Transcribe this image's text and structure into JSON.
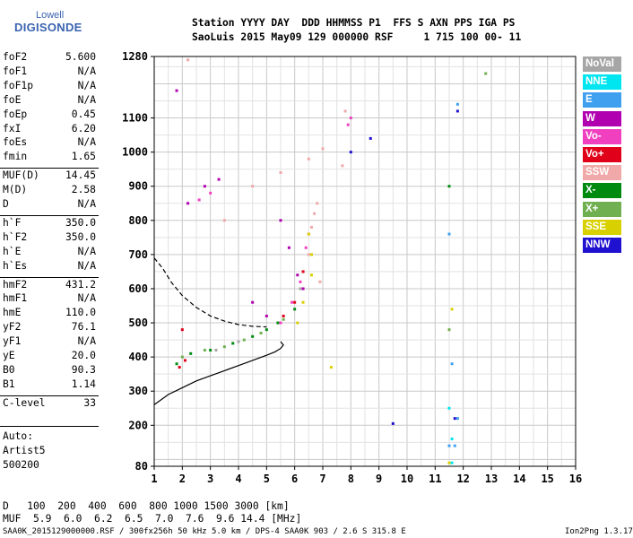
{
  "logo": {
    "line1": "Lowell",
    "line2": "DIGISONDE"
  },
  "header": {
    "row1": "Station YYYY DAY  DDD HHMMSS P1  FFS S AXN PPS IGA PS",
    "row2": "SaoLuis 2015 May09 129 000000 RSF     1 715 100 00- 11"
  },
  "params": [
    {
      "group": 1,
      "name": "foF2",
      "value": "5.600"
    },
    {
      "group": 1,
      "name": "foF1",
      "value": "N/A"
    },
    {
      "group": 1,
      "name": "foF1p",
      "value": "N/A"
    },
    {
      "group": 1,
      "name": "foE",
      "value": "N/A"
    },
    {
      "group": 1,
      "name": "foEp",
      "value": "0.45"
    },
    {
      "group": 1,
      "name": "fxI",
      "value": "6.20"
    },
    {
      "group": 1,
      "name": "foEs",
      "value": "N/A"
    },
    {
      "group": 1,
      "name": "fmin",
      "value": "1.65"
    },
    {
      "group": 2,
      "name": "MUF(D)",
      "value": "14.45"
    },
    {
      "group": 2,
      "name": "M(D)",
      "value": "2.58"
    },
    {
      "group": 2,
      "name": "D",
      "value": "N/A"
    },
    {
      "group": 3,
      "name": "h`F",
      "value": "350.0"
    },
    {
      "group": 3,
      "name": "h`F2",
      "value": "350.0"
    },
    {
      "group": 3,
      "name": "h`E",
      "value": "N/A"
    },
    {
      "group": 3,
      "name": "h`Es",
      "value": "N/A"
    },
    {
      "group": 4,
      "name": "hmF2",
      "value": "431.2"
    },
    {
      "group": 4,
      "name": "hmF1",
      "value": "N/A"
    },
    {
      "group": 4,
      "name": "hmE",
      "value": "110.0"
    },
    {
      "group": 4,
      "name": "yF2",
      "value": "76.1"
    },
    {
      "group": 4,
      "name": "yF1",
      "value": "N/A"
    },
    {
      "group": 4,
      "name": "yE",
      "value": "20.0"
    },
    {
      "group": 4,
      "name": "B0",
      "value": "90.3"
    },
    {
      "group": 4,
      "name": "B1",
      "value": "1.14"
    },
    {
      "group": 5,
      "name": "C-level",
      "value": "33"
    }
  ],
  "auto": {
    "l1": "Auto:",
    "l2": "Artist5",
    "l3": "500200"
  },
  "legend": [
    {
      "label": "NoVal",
      "color": "#a6a6a6"
    },
    {
      "label": "NNE",
      "color": "#00e6f0"
    },
    {
      "label": "E",
      "color": "#3fa0f0"
    },
    {
      "label": "W",
      "color": "#b000b0"
    },
    {
      "label": "Vo-",
      "color": "#f040c0"
    },
    {
      "label": "Vo+",
      "color": "#e0001a"
    },
    {
      "label": "SSW",
      "color": "#f0a8a8"
    },
    {
      "label": "X-",
      "color": "#008a10"
    },
    {
      "label": "X+",
      "color": "#70b050"
    },
    {
      "label": "SSE",
      "color": "#d8d000"
    },
    {
      "label": "NNW",
      "color": "#2010d0"
    }
  ],
  "bottom": {
    "drow": "D   100  200  400  600  800 1000 1500 3000 [km]",
    "mufrow": "MUF  5.9  6.0  6.2  6.5  7.0  7.6  9.6 14.4 [MHz]"
  },
  "footer": {
    "left": "SAA0K_2015129000000.RSF / 300fx256h 50 kHz 5.0 km / DPS-4 SAA0K 903 / 2.6 S 315.8 E",
    "right": "Ion2Png 1.3.17"
  },
  "chart_data": {
    "type": "scatter",
    "xlim": [
      1,
      16
    ],
    "ylim": [
      80,
      1280
    ],
    "x_ticks": [
      1,
      2,
      3,
      4,
      5,
      6,
      7,
      8,
      9,
      10,
      11,
      12,
      13,
      14,
      15,
      16
    ],
    "y_ticks": [
      80,
      200,
      300,
      400,
      500,
      600,
      700,
      800,
      900,
      1000,
      1100,
      1280
    ],
    "grid": true,
    "legend_position": "right",
    "series": [
      {
        "color": "#b000b0",
        "points": [
          [
            1.8,
            1180
          ],
          [
            5.5,
            800
          ],
          [
            5.8,
            720
          ],
          [
            6.1,
            640
          ],
          [
            6.3,
            600
          ],
          [
            4.5,
            560
          ],
          [
            5.0,
            520
          ],
          [
            2.2,
            850
          ],
          [
            2.8,
            900
          ],
          [
            3.3,
            920
          ]
        ]
      },
      {
        "color": "#f040c0",
        "points": [
          [
            6.4,
            720
          ],
          [
            6.5,
            760
          ],
          [
            6.2,
            620
          ],
          [
            5.9,
            560
          ],
          [
            5.5,
            500
          ],
          [
            3.0,
            880
          ],
          [
            2.6,
            860
          ],
          [
            7.9,
            1080
          ],
          [
            8.0,
            1100
          ]
        ]
      },
      {
        "color": "#e0001a",
        "points": [
          [
            1.9,
            370
          ],
          [
            2.1,
            390
          ],
          [
            6.0,
            560
          ],
          [
            6.3,
            650
          ],
          [
            5.6,
            520
          ],
          [
            2.0,
            480
          ]
        ]
      },
      {
        "color": "#f0a8a8",
        "points": [
          [
            6.6,
            780
          ],
          [
            6.7,
            820
          ],
          [
            6.8,
            850
          ],
          [
            6.5,
            700
          ],
          [
            6.9,
            620
          ],
          [
            4.5,
            900
          ],
          [
            5.5,
            940
          ],
          [
            6.5,
            980
          ],
          [
            7.0,
            1010
          ],
          [
            2.2,
            1270
          ],
          [
            3.5,
            800
          ],
          [
            7.7,
            960
          ],
          [
            7.8,
            1120
          ]
        ]
      },
      {
        "color": "#008a10",
        "points": [
          [
            1.8,
            380
          ],
          [
            2.3,
            410
          ],
          [
            3.0,
            420
          ],
          [
            3.8,
            440
          ],
          [
            4.5,
            460
          ],
          [
            5.0,
            480
          ],
          [
            5.4,
            500
          ],
          [
            11.5,
            900
          ],
          [
            6.0,
            540
          ]
        ]
      },
      {
        "color": "#70b050",
        "points": [
          [
            2.0,
            400
          ],
          [
            2.8,
            420
          ],
          [
            3.5,
            430
          ],
          [
            4.2,
            450
          ],
          [
            4.8,
            470
          ],
          [
            5.6,
            510
          ],
          [
            12.8,
            1230
          ],
          [
            11.5,
            480
          ]
        ]
      },
      {
        "color": "#d8d000",
        "points": [
          [
            6.3,
            560
          ],
          [
            6.6,
            640
          ],
          [
            6.6,
            700
          ],
          [
            6.1,
            500
          ],
          [
            7.3,
            370
          ],
          [
            11.6,
            540
          ],
          [
            11.5,
            90
          ],
          [
            6.5,
            760
          ]
        ]
      },
      {
        "color": "#3fa0f0",
        "points": [
          [
            11.5,
            760
          ],
          [
            11.6,
            380
          ],
          [
            11.5,
            140
          ],
          [
            11.7,
            140
          ],
          [
            11.8,
            220
          ],
          [
            11.8,
            1140
          ]
        ]
      },
      {
        "color": "#00e6f0",
        "points": [
          [
            11.5,
            250
          ],
          [
            11.6,
            90
          ],
          [
            11.6,
            160
          ]
        ]
      },
      {
        "color": "#2010d0",
        "points": [
          [
            9.5,
            205
          ],
          [
            11.8,
            1120
          ],
          [
            11.7,
            220
          ],
          [
            8.7,
            1040
          ],
          [
            8.0,
            1000
          ]
        ]
      },
      {
        "color": "#a6a6a6",
        "points": [
          [
            3.2,
            420
          ],
          [
            4.0,
            445
          ],
          [
            6.2,
            600
          ]
        ]
      }
    ],
    "curves": [
      {
        "style": "solid",
        "points": [
          [
            1.0,
            260
          ],
          [
            1.5,
            290
          ],
          [
            2.0,
            310
          ],
          [
            2.5,
            330
          ],
          [
            3.0,
            345
          ],
          [
            3.5,
            360
          ],
          [
            4.0,
            375
          ],
          [
            4.5,
            390
          ],
          [
            5.0,
            405
          ],
          [
            5.3,
            415
          ],
          [
            5.5,
            425
          ],
          [
            5.6,
            435
          ],
          [
            5.5,
            445
          ]
        ]
      },
      {
        "style": "dashed",
        "points": [
          [
            1.0,
            690
          ],
          [
            1.3,
            660
          ],
          [
            1.6,
            620
          ],
          [
            2.0,
            580
          ],
          [
            2.5,
            545
          ],
          [
            3.0,
            520
          ],
          [
            3.5,
            505
          ],
          [
            4.0,
            495
          ],
          [
            4.5,
            490
          ],
          [
            5.0,
            488
          ]
        ]
      }
    ]
  }
}
